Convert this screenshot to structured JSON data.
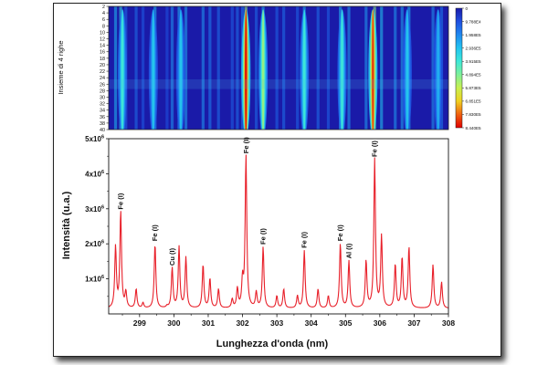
{
  "figure": {
    "heatmap": {
      "ylabel": "Insieme di 4 righe",
      "yticks": [
        "2",
        "4",
        "6",
        "8",
        "10",
        "12",
        "14",
        "16",
        "18",
        "20",
        "22",
        "24",
        "26",
        "28",
        "30",
        "32",
        "34",
        "36",
        "38",
        "40"
      ],
      "colorbar": {
        "ticks": [
          "0",
          "9.788E4",
          "1.958E5",
          "2.936E5",
          "3.915E5",
          "4.894E5",
          "5.873E5",
          "6.851E5",
          "7.830E5",
          "8.440E5"
        ],
        "colors": [
          "#1a1aa8",
          "#1f4fe0",
          "#1f88f0",
          "#22c4f0",
          "#3ee8d8",
          "#7ef09a",
          "#c8f050",
          "#f0d020",
          "#f06010",
          "#e00000"
        ]
      }
    },
    "spectrum": {
      "xlabel": "Lunghezza d'onda (nm)",
      "ylabel": "Intensità (u.a.)",
      "line_color": "#e8202a",
      "ytick_labels": [
        {
          "base": "1x10",
          "exp": "6",
          "value": 1000000
        },
        {
          "base": "2x10",
          "exp": "6",
          "value": 2000000
        },
        {
          "base": "3x10",
          "exp": "6",
          "value": 3000000
        },
        {
          "base": "4x10",
          "exp": "6",
          "value": 4000000
        },
        {
          "base": "5x10",
          "exp": "6",
          "value": 5000000
        }
      ]
    }
  },
  "chart_data": [
    {
      "type": "heatmap",
      "y_axis_label": "Insieme di 4 righe",
      "y_range": [
        2,
        40
      ],
      "x_range": [
        298.1,
        308.0
      ],
      "colorscale_range": [
        0,
        844000
      ],
      "intense_bands": [
        {
          "x": 298.5,
          "intensity": 0.45
        },
        {
          "x": 299.4,
          "intensity": 0.35
        },
        {
          "x": 300.2,
          "intensity": 0.35
        },
        {
          "x": 302.1,
          "intensity": 1.0
        },
        {
          "x": 302.6,
          "intensity": 0.6
        },
        {
          "x": 303.8,
          "intensity": 0.45
        },
        {
          "x": 304.9,
          "intensity": 0.45
        },
        {
          "x": 305.8,
          "intensity": 0.95
        },
        {
          "x": 306.8,
          "intensity": 0.35
        },
        {
          "x": 307.7,
          "intensity": 0.3
        }
      ]
    },
    {
      "type": "line",
      "xlabel": "Lunghezza d'onda (nm)",
      "ylabel": "Intensità (u.a.)",
      "xlim": [
        298.1,
        308.0
      ],
      "ylim": [
        0,
        5000000
      ],
      "xticks": [
        299,
        300,
        301,
        302,
        303,
        304,
        305,
        306,
        307,
        308
      ],
      "baseline": 150000,
      "peaks": [
        {
          "x": 298.3,
          "y": 1900000
        },
        {
          "x": 298.45,
          "y": 2900000
        },
        {
          "x": 298.6,
          "y": 600000
        },
        {
          "x": 298.9,
          "y": 700000
        },
        {
          "x": 299.1,
          "y": 300000
        },
        {
          "x": 299.45,
          "y": 2000000
        },
        {
          "x": 299.8,
          "y": 200000
        },
        {
          "x": 299.95,
          "y": 1300000
        },
        {
          "x": 300.15,
          "y": 1900000
        },
        {
          "x": 300.35,
          "y": 1600000
        },
        {
          "x": 300.85,
          "y": 1400000
        },
        {
          "x": 301.05,
          "y": 1000000
        },
        {
          "x": 301.3,
          "y": 700000
        },
        {
          "x": 301.7,
          "y": 400000
        },
        {
          "x": 301.85,
          "y": 700000
        },
        {
          "x": 302.0,
          "y": 900000
        },
        {
          "x": 302.1,
          "y": 4500000
        },
        {
          "x": 302.4,
          "y": 600000
        },
        {
          "x": 302.6,
          "y": 1900000
        },
        {
          "x": 303.0,
          "y": 500000
        },
        {
          "x": 303.2,
          "y": 700000
        },
        {
          "x": 303.6,
          "y": 500000
        },
        {
          "x": 303.8,
          "y": 1800000
        },
        {
          "x": 304.2,
          "y": 700000
        },
        {
          "x": 304.5,
          "y": 500000
        },
        {
          "x": 304.85,
          "y": 2000000
        },
        {
          "x": 305.1,
          "y": 1500000
        },
        {
          "x": 305.6,
          "y": 1500000
        },
        {
          "x": 305.85,
          "y": 4400000
        },
        {
          "x": 306.05,
          "y": 2200000
        },
        {
          "x": 306.45,
          "y": 1400000
        },
        {
          "x": 306.65,
          "y": 1600000
        },
        {
          "x": 306.85,
          "y": 1900000
        },
        {
          "x": 307.55,
          "y": 1400000
        },
        {
          "x": 307.8,
          "y": 900000
        }
      ],
      "annotations": [
        {
          "text": "Fe (I)",
          "x": 298.45,
          "y": 2900000
        },
        {
          "text": "Fe (I)",
          "x": 299.45,
          "y": 2000000
        },
        {
          "text": "Cu (I)",
          "x": 299.95,
          "y": 1300000
        },
        {
          "text": "Fe (I)",
          "x": 302.1,
          "y": 4500000
        },
        {
          "text": "Fe (I)",
          "x": 302.6,
          "y": 1900000
        },
        {
          "text": "Fe (I)",
          "x": 303.8,
          "y": 1800000
        },
        {
          "text": "Fe (I)",
          "x": 304.85,
          "y": 2000000
        },
        {
          "text": "Al (I)",
          "x": 305.1,
          "y": 1500000
        },
        {
          "text": "Fe (I)",
          "x": 305.85,
          "y": 4400000
        }
      ]
    }
  ]
}
